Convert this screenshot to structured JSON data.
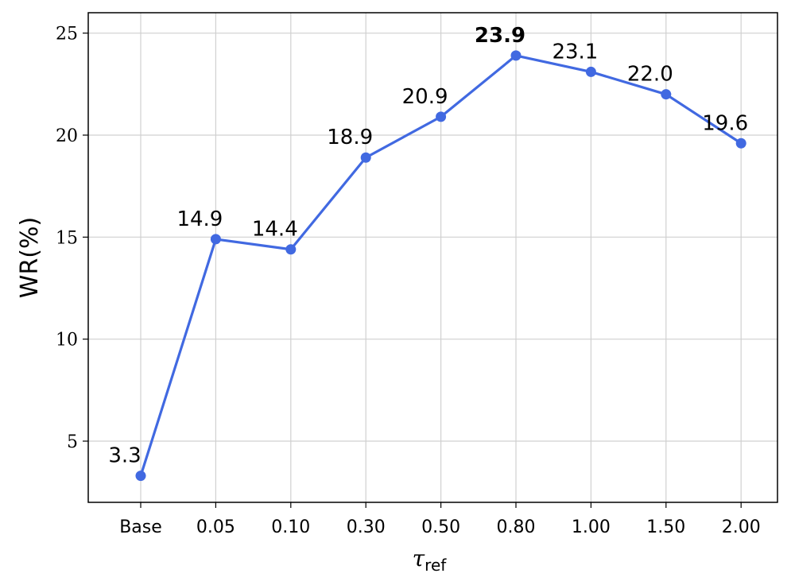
{
  "chart_data": {
    "type": "line",
    "categories": [
      "Base",
      "0.05",
      "0.10",
      "0.30",
      "0.50",
      "0.80",
      "1.00",
      "1.50",
      "2.00"
    ],
    "series": [
      {
        "values": [
          3.3,
          14.9,
          14.4,
          18.9,
          20.9,
          23.9,
          23.1,
          22.0,
          19.6
        ],
        "labels": [
          "3.3",
          "14.9",
          "14.4",
          "18.9",
          "20.9",
          "23.9",
          "23.1",
          "22.0",
          "19.6"
        ],
        "color": "#4169e1"
      }
    ],
    "highlight_index": 5,
    "xlabel": "τ",
    "xlabel_subscript": "ref",
    "ylabel": "WR(%)",
    "ylim": [
      2,
      26
    ],
    "yticks": [
      5,
      10,
      15,
      20,
      25
    ],
    "ytick_labels": [
      "5",
      "10",
      "15",
      "20",
      "25"
    ],
    "grid": true,
    "legend": "none"
  }
}
